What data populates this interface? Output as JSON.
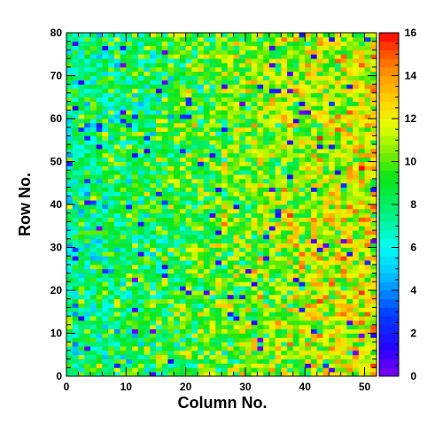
{
  "chart_data": {
    "type": "heatmap",
    "title": "",
    "xlabel": "Column No.",
    "ylabel": "Row No.",
    "xlim": [
      0,
      52
    ],
    "ylim": [
      0,
      80
    ],
    "n_columns": 52,
    "n_rows": 80,
    "x_ticks": [
      "0",
      "10",
      "20",
      "30",
      "40",
      "50"
    ],
    "y_ticks": [
      "0",
      "10",
      "20",
      "30",
      "40",
      "50",
      "60",
      "70",
      "80"
    ],
    "colorbar": {
      "min": 0,
      "max": 16,
      "ticks": [
        "0",
        "2",
        "4",
        "6",
        "8",
        "10",
        "12",
        "14",
        "16"
      ]
    },
    "value_trend": {
      "description": "values around 7-9 at low column numbers, rising to about 11-13 at high column numbers, with cell-to-cell noise of roughly +/-3 and occasional low outliers near 0-2",
      "mean_at_column_0": 7.5,
      "mean_at_column_52": 12.0
    },
    "grid": false,
    "legend": "colorbar-right"
  }
}
